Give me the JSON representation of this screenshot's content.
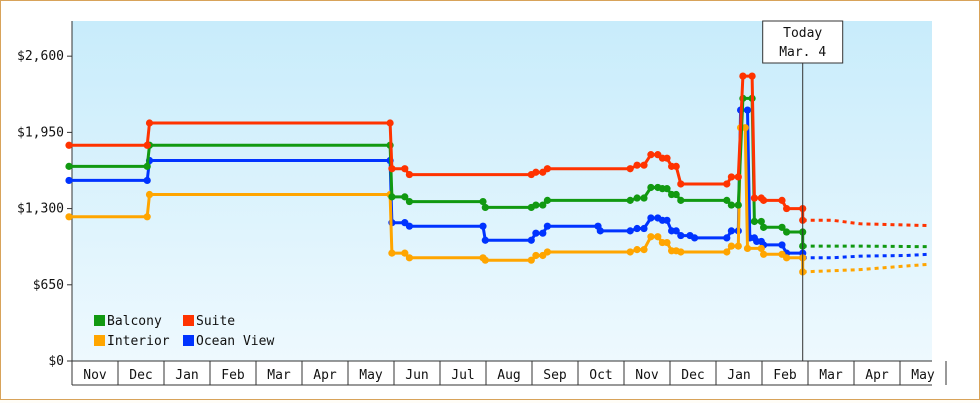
{
  "chart_data": {
    "type": "line",
    "title": "",
    "xlabel": "",
    "ylabel": "",
    "ylim": [
      0,
      2900
    ],
    "y_ticks": [
      {
        "value": 0,
        "label": "$0"
      },
      {
        "value": 650,
        "label": "$650"
      },
      {
        "value": 1300,
        "label": "$1,300"
      },
      {
        "value": 1950,
        "label": "$1,950"
      },
      {
        "value": 2600,
        "label": "$2,600"
      }
    ],
    "x_ticks": [
      "Nov",
      "Dec",
      "Jan",
      "Feb",
      "Mar",
      "Apr",
      "May",
      "Jun",
      "Jul",
      "Aug",
      "Sep",
      "Oct",
      "Nov",
      "Dec",
      "Jan",
      "Feb",
      "Mar",
      "Apr",
      "May"
    ],
    "today_marker": {
      "line1": "Today",
      "line2": "Mar. 4",
      "x": 15.95
    },
    "grid": false,
    "legend_position": "bottom-left",
    "series": [
      {
        "name": "Suite",
        "color": "#ff3300",
        "points": [
          [
            0,
            1840
          ],
          [
            1.7,
            1840
          ],
          [
            1.75,
            2030
          ],
          [
            6.98,
            2030
          ],
          [
            7.02,
            1640
          ],
          [
            7.3,
            1640
          ],
          [
            7.4,
            1590
          ],
          [
            10.05,
            1590
          ],
          [
            10.15,
            1610
          ],
          [
            10.3,
            1610
          ],
          [
            10.4,
            1640
          ],
          [
            12.2,
            1640
          ],
          [
            12.35,
            1670
          ],
          [
            12.5,
            1670
          ],
          [
            12.65,
            1760
          ],
          [
            12.8,
            1760
          ],
          [
            12.9,
            1730
          ],
          [
            13.0,
            1730
          ],
          [
            13.1,
            1660
          ],
          [
            13.2,
            1660
          ],
          [
            13.3,
            1510
          ],
          [
            14.3,
            1510
          ],
          [
            14.4,
            1570
          ],
          [
            14.55,
            1570
          ],
          [
            14.65,
            2430
          ],
          [
            14.85,
            2430
          ],
          [
            14.9,
            1390
          ],
          [
            15.05,
            1390
          ],
          [
            15.1,
            1370
          ],
          [
            15.5,
            1370
          ],
          [
            15.6,
            1300
          ],
          [
            15.95,
            1300
          ],
          [
            15.95,
            1200
          ]
        ],
        "forecast": [
          [
            15.95,
            1200
          ],
          [
            16.6,
            1200
          ],
          [
            17.2,
            1170
          ],
          [
            18.2,
            1160
          ],
          [
            18.7,
            1155
          ]
        ]
      },
      {
        "name": "Balcony",
        "color": "#119911",
        "points": [
          [
            0,
            1660
          ],
          [
            1.7,
            1660
          ],
          [
            1.75,
            1840
          ],
          [
            6.98,
            1840
          ],
          [
            7.02,
            1400
          ],
          [
            7.3,
            1400
          ],
          [
            7.4,
            1360
          ],
          [
            9.0,
            1360
          ],
          [
            9.05,
            1310
          ],
          [
            10.05,
            1310
          ],
          [
            10.15,
            1330
          ],
          [
            10.3,
            1330
          ],
          [
            10.4,
            1370
          ],
          [
            12.2,
            1370
          ],
          [
            12.35,
            1390
          ],
          [
            12.5,
            1390
          ],
          [
            12.65,
            1480
          ],
          [
            12.8,
            1480
          ],
          [
            12.9,
            1470
          ],
          [
            13.0,
            1470
          ],
          [
            13.1,
            1420
          ],
          [
            13.2,
            1420
          ],
          [
            13.3,
            1370
          ],
          [
            14.3,
            1370
          ],
          [
            14.4,
            1330
          ],
          [
            14.55,
            1330
          ],
          [
            14.65,
            2240
          ],
          [
            14.85,
            2240
          ],
          [
            14.9,
            1190
          ],
          [
            15.05,
            1190
          ],
          [
            15.1,
            1140
          ],
          [
            15.5,
            1140
          ],
          [
            15.6,
            1100
          ],
          [
            15.95,
            1100
          ],
          [
            15.95,
            980
          ]
        ],
        "forecast": [
          [
            15.95,
            980
          ],
          [
            16.6,
            980
          ],
          [
            17.2,
            980
          ],
          [
            18.7,
            975
          ]
        ]
      },
      {
        "name": "Ocean View",
        "color": "#0033ff",
        "points": [
          [
            0,
            1540
          ],
          [
            1.7,
            1540
          ],
          [
            1.75,
            1710
          ],
          [
            6.98,
            1710
          ],
          [
            7.02,
            1180
          ],
          [
            7.3,
            1180
          ],
          [
            7.4,
            1150
          ],
          [
            9.0,
            1150
          ],
          [
            9.05,
            1030
          ],
          [
            10.05,
            1030
          ],
          [
            10.15,
            1090
          ],
          [
            10.3,
            1090
          ],
          [
            10.4,
            1150
          ],
          [
            11.5,
            1150
          ],
          [
            11.55,
            1110
          ],
          [
            12.2,
            1110
          ],
          [
            12.35,
            1130
          ],
          [
            12.5,
            1130
          ],
          [
            12.65,
            1220
          ],
          [
            12.8,
            1220
          ],
          [
            12.9,
            1200
          ],
          [
            13.0,
            1200
          ],
          [
            13.1,
            1110
          ],
          [
            13.2,
            1110
          ],
          [
            13.3,
            1070
          ],
          [
            13.5,
            1070
          ],
          [
            13.6,
            1050
          ],
          [
            14.3,
            1050
          ],
          [
            14.4,
            1110
          ],
          [
            14.55,
            1110
          ],
          [
            14.6,
            2140
          ],
          [
            14.75,
            2140
          ],
          [
            14.8,
            1050
          ],
          [
            14.9,
            1050
          ],
          [
            14.95,
            1020
          ],
          [
            15.05,
            1020
          ],
          [
            15.1,
            990
          ],
          [
            15.5,
            990
          ],
          [
            15.6,
            920
          ],
          [
            15.95,
            920
          ],
          [
            15.95,
            880
          ]
        ],
        "forecast": [
          [
            15.95,
            880
          ],
          [
            16.6,
            880
          ],
          [
            17.2,
            895
          ],
          [
            18.2,
            900
          ],
          [
            18.7,
            910
          ]
        ]
      },
      {
        "name": "Interior",
        "color": "#ffa500",
        "points": [
          [
            0,
            1230
          ],
          [
            1.7,
            1230
          ],
          [
            1.75,
            1420
          ],
          [
            6.98,
            1420
          ],
          [
            7.02,
            920
          ],
          [
            7.3,
            920
          ],
          [
            7.4,
            880
          ],
          [
            9.0,
            880
          ],
          [
            9.05,
            860
          ],
          [
            10.05,
            860
          ],
          [
            10.15,
            900
          ],
          [
            10.3,
            900
          ],
          [
            10.4,
            930
          ],
          [
            12.2,
            930
          ],
          [
            12.35,
            950
          ],
          [
            12.5,
            950
          ],
          [
            12.65,
            1060
          ],
          [
            12.8,
            1060
          ],
          [
            12.9,
            1010
          ],
          [
            13.0,
            1010
          ],
          [
            13.1,
            940
          ],
          [
            13.2,
            940
          ],
          [
            13.3,
            930
          ],
          [
            14.3,
            930
          ],
          [
            14.4,
            980
          ],
          [
            14.55,
            980
          ],
          [
            14.6,
            1990
          ],
          [
            14.7,
            1990
          ],
          [
            14.75,
            960
          ],
          [
            15.05,
            960
          ],
          [
            15.1,
            910
          ],
          [
            15.5,
            910
          ],
          [
            15.6,
            880
          ],
          [
            15.95,
            880
          ],
          [
            15.95,
            760
          ]
        ],
        "forecast": [
          [
            15.95,
            760
          ],
          [
            16.6,
            770
          ],
          [
            17.2,
            780
          ],
          [
            18.2,
            810
          ],
          [
            18.7,
            825
          ]
        ]
      }
    ]
  }
}
